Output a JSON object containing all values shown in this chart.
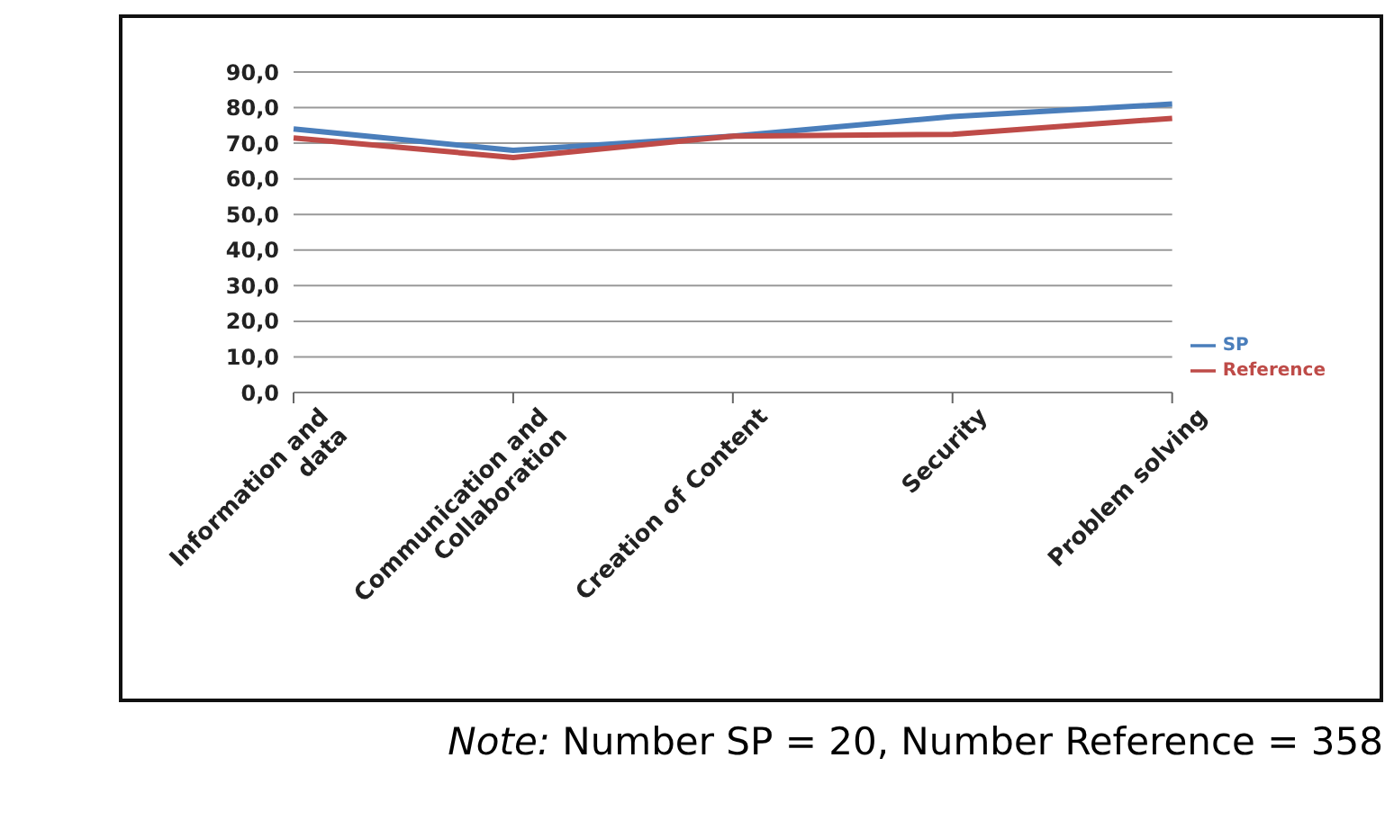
{
  "chart_data": {
    "type": "line",
    "categories": [
      "Information and data",
      "Communication and Collaboration",
      "Creation of Content",
      "Security",
      "Problem solving"
    ],
    "series": [
      {
        "name": "SP",
        "color": "#4a7ebb",
        "values": [
          74,
          68,
          72,
          77.5,
          81
        ]
      },
      {
        "name": "Reference",
        "color": "#be4b48",
        "values": [
          71.5,
          66,
          72,
          72.5,
          77
        ]
      }
    ],
    "ylim": [
      0,
      90
    ],
    "yticks": [
      {
        "value": 0,
        "label": "0,0"
      },
      {
        "value": 10,
        "label": "10,0"
      },
      {
        "value": 20,
        "label": "20,0"
      },
      {
        "value": 30,
        "label": "30,0"
      },
      {
        "value": 40,
        "label": "40,0"
      },
      {
        "value": 50,
        "label": "50,0"
      },
      {
        "value": 60,
        "label": "60,0"
      },
      {
        "value": 70,
        "label": "70,0"
      },
      {
        "value": 80,
        "label": "80,0"
      },
      {
        "value": 90,
        "label": "90,0"
      }
    ],
    "grid": "y",
    "legend": "right",
    "marker": "none",
    "line_style": "solid",
    "annotations": [
      "Note: Number SP = 20, Number Reference = 358"
    ]
  }
}
